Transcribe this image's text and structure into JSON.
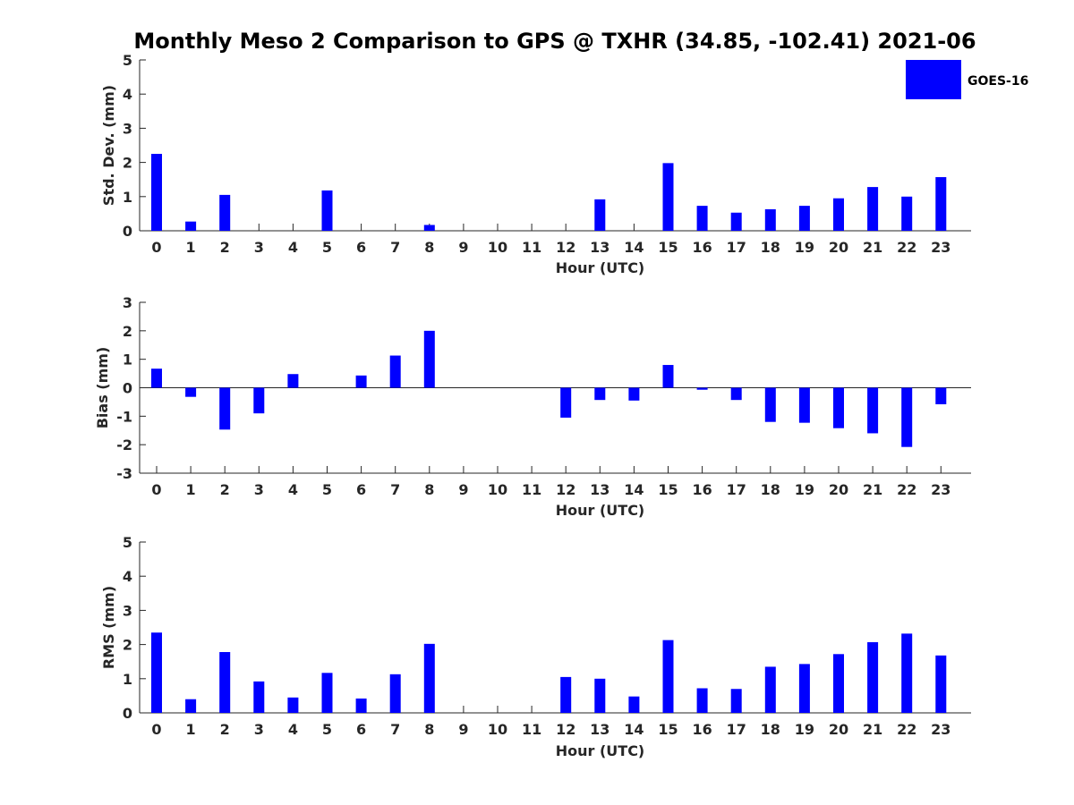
{
  "title": "Monthly Meso 2 Comparison to GPS @ TXHR (34.85, -102.41) 2021-06",
  "legend": {
    "label": "GOES-16",
    "color": "#0000ff",
    "placement": "top-right"
  },
  "chart_data": [
    {
      "type": "bar",
      "name": "std-dev",
      "xlabel": "Hour (UTC)",
      "ylabel": "Std. Dev. (mm)",
      "ylim": [
        0,
        5
      ],
      "yticks": [
        "0",
        "1",
        "2",
        "3",
        "4",
        "5"
      ],
      "categories": [
        "0",
        "1",
        "2",
        "3",
        "4",
        "5",
        "6",
        "7",
        "8",
        "9",
        "10",
        "11",
        "12",
        "13",
        "14",
        "15",
        "16",
        "17",
        "18",
        "19",
        "20",
        "21",
        "22",
        "23"
      ],
      "series": [
        {
          "name": "GOES-16",
          "values": [
            2.25,
            0.27,
            1.05,
            0,
            0,
            1.18,
            0,
            0,
            0.17,
            0,
            0,
            0,
            0,
            0.92,
            0,
            1.98,
            0.73,
            0.53,
            0.63,
            0.73,
            0.95,
            1.28,
            1.0,
            1.57
          ]
        }
      ]
    },
    {
      "type": "bar",
      "name": "bias",
      "xlabel": "Hour (UTC)",
      "ylabel": "Bias (mm)",
      "ylim": [
        -3,
        3
      ],
      "yticks": [
        "-3",
        "-2",
        "-1",
        "0",
        "1",
        "2",
        "3"
      ],
      "categories": [
        "0",
        "1",
        "2",
        "3",
        "4",
        "5",
        "6",
        "7",
        "8",
        "9",
        "10",
        "11",
        "12",
        "13",
        "14",
        "15",
        "16",
        "17",
        "18",
        "19",
        "20",
        "21",
        "22",
        "23"
      ],
      "series": [
        {
          "name": "GOES-16",
          "values": [
            0.67,
            -0.32,
            -1.47,
            -0.9,
            0.48,
            0,
            0.43,
            1.13,
            2.0,
            0,
            0,
            0,
            -1.05,
            -0.43,
            -0.45,
            0.8,
            -0.07,
            -0.43,
            -1.2,
            -1.23,
            -1.42,
            -1.6,
            -2.08,
            -0.58
          ]
        }
      ]
    },
    {
      "type": "bar",
      "name": "rms",
      "xlabel": "Hour (UTC)",
      "ylabel": "RMS (mm)",
      "ylim": [
        0,
        5
      ],
      "yticks": [
        "0",
        "1",
        "2",
        "3",
        "4",
        "5"
      ],
      "categories": [
        "0",
        "1",
        "2",
        "3",
        "4",
        "5",
        "6",
        "7",
        "8",
        "9",
        "10",
        "11",
        "12",
        "13",
        "14",
        "15",
        "16",
        "17",
        "18",
        "19",
        "20",
        "21",
        "22",
        "23"
      ],
      "series": [
        {
          "name": "GOES-16",
          "values": [
            2.35,
            0.4,
            1.78,
            0.92,
            0.45,
            1.17,
            0.42,
            1.13,
            2.02,
            0,
            0,
            0,
            1.05,
            1.0,
            0.48,
            2.13,
            0.72,
            0.7,
            1.35,
            1.43,
            1.72,
            2.07,
            2.32,
            1.68
          ]
        }
      ]
    }
  ]
}
